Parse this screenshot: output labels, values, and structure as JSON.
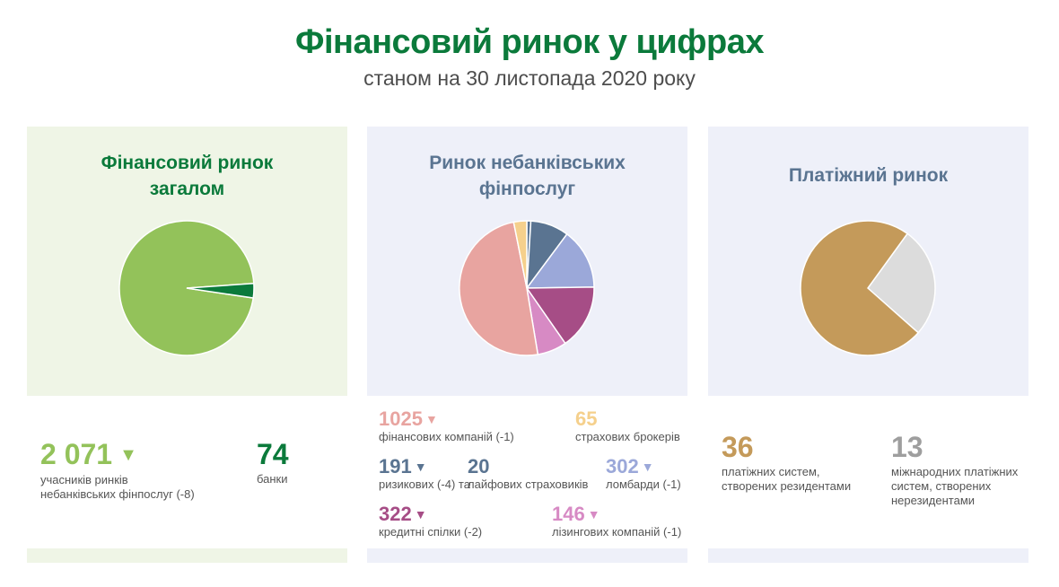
{
  "title": "Фінансовий ринок у цифрах",
  "subtitle": "станом на 30 листопада 2020 року",
  "colors": {
    "brand_green": "#0b7a3b",
    "light_green": "#93c25a",
    "slate_blue": "#5a7491",
    "pink_salmon": "#e8a4a0",
    "cream": "#f5d08c",
    "periwinkle": "#9ba8d9",
    "magenta": "#a64d86",
    "orchid": "#d78ac4",
    "gold": "#c49a5a",
    "light_gray": "#dcdcdc",
    "gray": "#9e9e9e"
  },
  "panels": {
    "overall": {
      "title_line1": "Фінансовий ринок",
      "title_line2": "загалом",
      "stats": {
        "participants": {
          "value": "2 071",
          "trend_icon": "▼",
          "label_line1": "учасників ринків",
          "label_line2": "небанківських фінпослуг (-8)"
        },
        "banks": {
          "value": "74",
          "label": "банки"
        }
      }
    },
    "nonbank": {
      "title_line1": "Ринок небанківських",
      "title_line2": "фінпослуг",
      "stats": {
        "financial": {
          "value": "1025",
          "trend_icon": "▼",
          "label": "фінансових компаній (-1)"
        },
        "brokers": {
          "value": "65",
          "label": "страхових брокерів"
        },
        "risk": {
          "value": "191",
          "trend_icon": "▼",
          "label": "ризикових (-4) та"
        },
        "life": {
          "value": "20",
          "label": "лайфових страховиків"
        },
        "pawn": {
          "value": "302",
          "trend_icon": "▼",
          "label": "ломбарди (-1)"
        },
        "credit": {
          "value": "322",
          "trend_icon": "▼",
          "label": "кредитні спілки (-2)"
        },
        "leasing": {
          "value": "146",
          "trend_icon": "▼",
          "label": "лізингових компаній (-1)"
        }
      }
    },
    "payment": {
      "title": "Платіжний ринок",
      "stats": {
        "resident": {
          "value": "36",
          "label_line1": "платіжних систем,",
          "label_line2": "створених резидентами"
        },
        "international": {
          "value": "13",
          "label_line1": "міжнародних платіжних",
          "label_line2": "систем, створених",
          "label_line3": "нерезидентами"
        }
      }
    }
  },
  "chart_data": [
    {
      "type": "pie",
      "title": "Фінансовий ринок загалом",
      "start_angle_deg": 86,
      "direction": "counterclockwise",
      "slices": [
        {
          "label": "учасників ринків небанківських фінпослуг",
          "value": 2071,
          "color": "#93c25a"
        },
        {
          "label": "банки",
          "value": 74,
          "color": "#0b7a3b"
        }
      ]
    },
    {
      "type": "pie",
      "title": "Ринок небанківських фінпослуг",
      "start_angle_deg": 0,
      "direction": "clockwise",
      "slices": [
        {
          "label": "лайфових страховиків",
          "value": 20,
          "color": "#5a7491"
        },
        {
          "label": "ризикових",
          "value": 191,
          "color": "#5a7491"
        },
        {
          "label": "ломбарди",
          "value": 302,
          "color": "#9ba8d9"
        },
        {
          "label": "кредитні спілки",
          "value": 322,
          "color": "#a64d86"
        },
        {
          "label": "лізингових компаній",
          "value": 146,
          "color": "#d78ac4"
        },
        {
          "label": "фінансових компаній",
          "value": 1025,
          "color": "#e8a4a0"
        },
        {
          "label": "страхових брокерів",
          "value": 65,
          "color": "#f5d08c"
        }
      ]
    },
    {
      "type": "pie",
      "title": "Платіжний ринок",
      "start_angle_deg": 36,
      "direction": "clockwise",
      "slices": [
        {
          "label": "міжнародних платіжних систем, створених нерезидентами",
          "value": 13,
          "color": "#dcdcdc"
        },
        {
          "label": "платіжних систем, створених резидентами",
          "value": 36,
          "color": "#c49a5a"
        }
      ]
    }
  ]
}
